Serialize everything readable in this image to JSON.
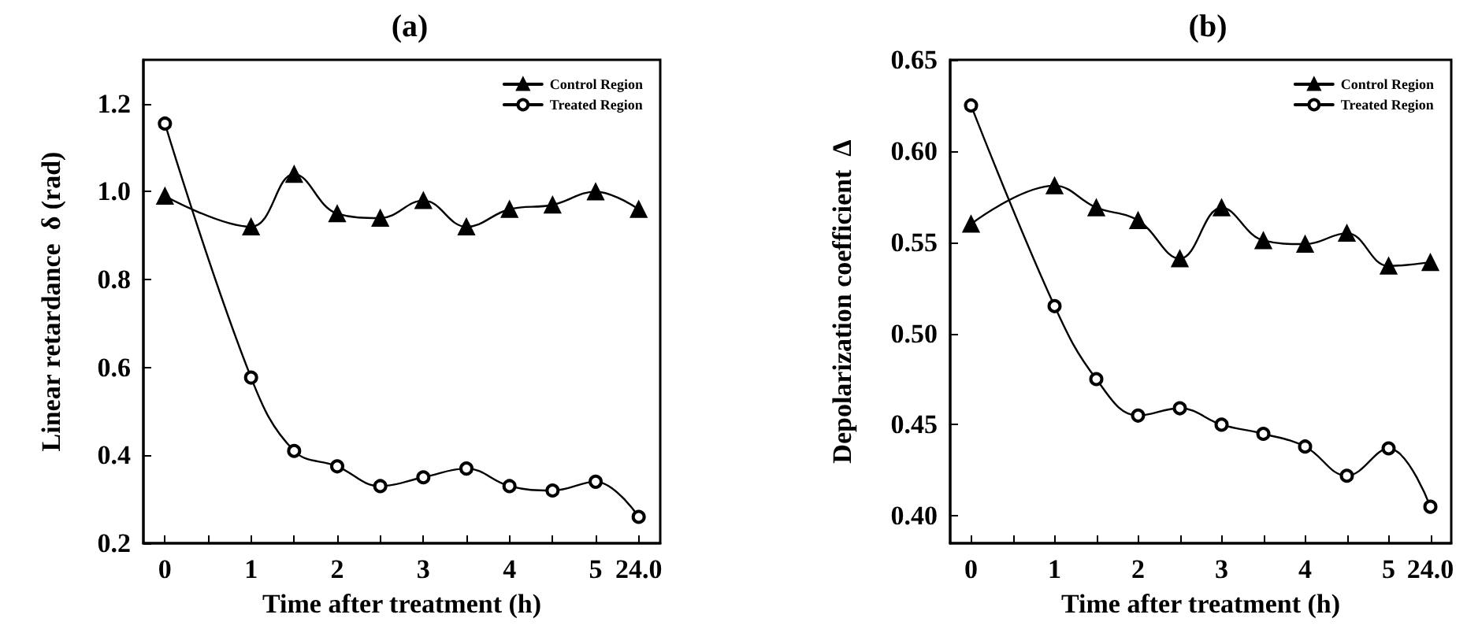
{
  "chart_data": [
    {
      "type": "line",
      "title": "(a)",
      "xlabel": "Time after treatment (h)",
      "ylabel": "Linear retardance  δ (rad)",
      "categories": [
        "0",
        null,
        "1",
        null,
        "2",
        null,
        "3",
        null,
        "4",
        null,
        "5",
        "24.0"
      ],
      "series": [
        {
          "name": "Control Region",
          "color": "#000000",
          "marker": "triangle",
          "values": [
            0.99,
            null,
            0.92,
            1.04,
            0.95,
            0.94,
            0.98,
            0.92,
            0.96,
            0.97,
            1.0,
            0.96
          ]
        },
        {
          "name": "Treated Region",
          "color": "#000000",
          "marker": "circle",
          "values": [
            1.155,
            null,
            0.577,
            0.41,
            0.375,
            0.33,
            0.35,
            0.37,
            0.33,
            0.32,
            0.34,
            0.26
          ]
        }
      ],
      "ylim": [
        0.2,
        1.3
      ],
      "yticks": [
        0.2,
        0.4,
        0.6,
        0.8,
        {
          "value": 1,
          "label": "1.0"
        },
        1.2
      ],
      "legend": "top right",
      "grid": false
    },
    {
      "type": "line",
      "title": "(b)",
      "xlabel": "Time after treatment (h)",
      "ylabel": "Depolarization coefficient  Δ",
      "categories": [
        "0",
        null,
        "1",
        null,
        "2",
        null,
        "3",
        null,
        "4",
        null,
        "5",
        "24.0"
      ],
      "series": [
        {
          "name": "Control Region",
          "color": "#000000",
          "marker": "triangle",
          "values": [
            0.56,
            null,
            0.581,
            0.569,
            0.562,
            0.541,
            0.569,
            0.551,
            0.549,
            0.555,
            0.537,
            0.539
          ]
        },
        {
          "name": "Treated Region",
          "color": "#000000",
          "marker": "circle",
          "values": [
            0.625,
            null,
            0.515,
            0.475,
            0.455,
            0.459,
            0.45,
            0.445,
            0.438,
            0.422,
            0.437,
            0.405
          ]
        }
      ],
      "ylim": [
        0.385,
        0.65
      ],
      "yticks": [
        {
          "value": 0.4,
          "label": "0.40"
        },
        0.45,
        {
          "value": 0.5,
          "label": "0.50"
        },
        0.55,
        {
          "value": 0.6,
          "label": "0.60"
        },
        0.65
      ],
      "legend": "top right",
      "grid": false
    }
  ]
}
